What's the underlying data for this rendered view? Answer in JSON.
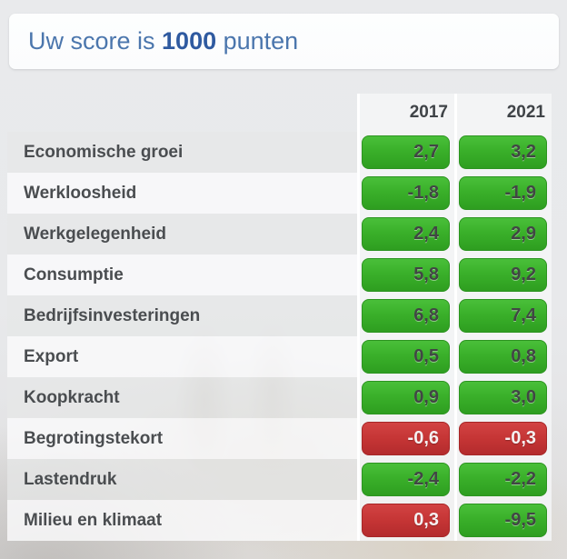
{
  "header": {
    "prefix": "Uw score is ",
    "score": "1000",
    "suffix": " punten"
  },
  "table": {
    "columns": [
      "2017",
      "2021"
    ],
    "rows": [
      {
        "label": "Economische groei",
        "values": [
          {
            "text": "2,7",
            "color": "green"
          },
          {
            "text": "3,2",
            "color": "green"
          }
        ]
      },
      {
        "label": "Werkloosheid",
        "values": [
          {
            "text": "-1,8",
            "color": "green"
          },
          {
            "text": "-1,9",
            "color": "green"
          }
        ]
      },
      {
        "label": "Werkgelegenheid",
        "values": [
          {
            "text": "2,4",
            "color": "green"
          },
          {
            "text": "2,9",
            "color": "green"
          }
        ]
      },
      {
        "label": "Consumptie",
        "values": [
          {
            "text": "5,8",
            "color": "green"
          },
          {
            "text": "9,2",
            "color": "green"
          }
        ]
      },
      {
        "label": "Bedrijfsinvesteringen",
        "values": [
          {
            "text": "6,8",
            "color": "green"
          },
          {
            "text": "7,4",
            "color": "green"
          }
        ]
      },
      {
        "label": "Export",
        "values": [
          {
            "text": "0,5",
            "color": "green"
          },
          {
            "text": "0,8",
            "color": "green"
          }
        ]
      },
      {
        "label": "Koopkracht",
        "values": [
          {
            "text": "0,9",
            "color": "green"
          },
          {
            "text": "3,0",
            "color": "green"
          }
        ]
      },
      {
        "label": "Begrotingstekort",
        "values": [
          {
            "text": "-0,6",
            "color": "red"
          },
          {
            "text": "-0,3",
            "color": "red"
          }
        ]
      },
      {
        "label": "Lastendruk",
        "values": [
          {
            "text": "-2,4",
            "color": "green"
          },
          {
            "text": "-2,2",
            "color": "green"
          }
        ]
      },
      {
        "label": "Milieu en klimaat",
        "values": [
          {
            "text": "0,3",
            "color": "red"
          },
          {
            "text": "-9,5",
            "color": "green"
          }
        ]
      }
    ]
  },
  "colors": {
    "positive_badge": "#3ab02a",
    "negative_badge": "#c53535",
    "score_text": "#4b76ad",
    "score_number": "#2f5aa0"
  }
}
